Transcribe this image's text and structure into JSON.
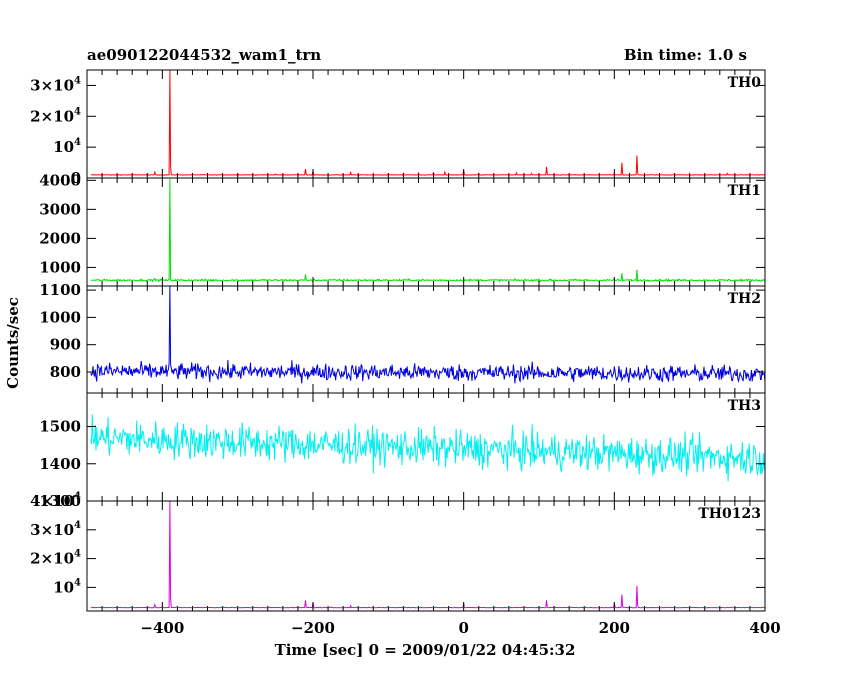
{
  "chart_data": {
    "type": "line",
    "title": "ae090122044532_wam1_trn",
    "bin_time": "Bin time: 1.0 s",
    "xlabel": "Time [sec] 0 = 2009/01/22 04:45:32",
    "ylabel": "Counts/sec",
    "xlim": [
      -500,
      400
    ],
    "x_ticks": [
      -400,
      -200,
      0,
      200,
      400
    ],
    "x_tick_labels": [
      "−400",
      "−200",
      "0",
      "200",
      "400"
    ],
    "grid": false,
    "panels": [
      {
        "name": "TH0",
        "color": "#ff0000",
        "ylim": [
          0,
          35000
        ],
        "y_ticks": [
          {
            "value": 0,
            "base": "0",
            "exp": ""
          },
          {
            "value": 10000,
            "base": "10",
            "exp": "4"
          },
          {
            "value": 20000,
            "base": "2×10",
            "exp": "4"
          },
          {
            "value": 30000,
            "base": "3×10",
            "exp": "4"
          }
        ],
        "baseline": 1000,
        "noise": 50,
        "spike_scale": 1,
        "spikes": [
          [
            -390,
            35000
          ],
          [
            -410,
            1900
          ],
          [
            -300,
            1400
          ],
          [
            -250,
            1300
          ],
          [
            -210,
            2900
          ],
          [
            -200,
            2300
          ],
          [
            -150,
            1800
          ],
          [
            -100,
            1400
          ],
          [
            -80,
            1500
          ],
          [
            -60,
            1600
          ],
          [
            -40,
            1700
          ],
          [
            -25,
            1900
          ],
          [
            0,
            2400
          ],
          [
            20,
            1500
          ],
          [
            70,
            1700
          ],
          [
            90,
            1500
          ],
          [
            110,
            3600
          ],
          [
            200,
            1600
          ],
          [
            210,
            5000
          ],
          [
            230,
            7300
          ],
          [
            350,
            1500
          ]
        ]
      },
      {
        "name": "TH1",
        "color": "#00e000",
        "ylim": [
          360,
          4080
        ],
        "y_ticks": [
          {
            "value": 1000,
            "base": "1000",
            "exp": ""
          },
          {
            "value": 2000,
            "base": "2000",
            "exp": ""
          },
          {
            "value": 3000,
            "base": "3000",
            "exp": ""
          },
          {
            "value": 4000,
            "base": "4000",
            "exp": ""
          }
        ],
        "baseline": 560,
        "noise": 25,
        "spike_scale": 0.105,
        "spikes": [
          [
            -390,
            4050
          ],
          [
            -410,
            620
          ],
          [
            -210,
            760
          ],
          [
            200,
            620
          ],
          [
            210,
            800
          ],
          [
            230,
            920
          ]
        ]
      },
      {
        "name": "TH2",
        "color": "#0000e0",
        "ylim": [
          723,
          1115
        ],
        "y_ticks": [
          {
            "value": 800,
            "base": "800",
            "exp": ""
          },
          {
            "value": 900,
            "base": "900",
            "exp": ""
          },
          {
            "value": 1000,
            "base": "1000",
            "exp": ""
          },
          {
            "value": 1100,
            "base": "1100",
            "exp": ""
          }
        ],
        "baseline": 803,
        "noise": 24,
        "trend": -10,
        "spike_scale": 0,
        "spikes": [
          [
            -390,
            1115
          ]
        ]
      },
      {
        "name": "TH3",
        "color": "#00f0f0",
        "ylim": [
          1300,
          1590
        ],
        "y_ticks": [
          {
            "value": 1300,
            "base": "1300",
            "exp": ""
          },
          {
            "value": 1400,
            "base": "1400",
            "exp": ""
          },
          {
            "value": 1500,
            "base": "1500",
            "exp": ""
          }
        ],
        "baseline": 1470,
        "noise": 38,
        "trend": -55,
        "spike_scale": 0,
        "spikes": []
      },
      {
        "name": "TH0123",
        "color": "#e000e0",
        "ylim": [
          1800,
          40000
        ],
        "y_ticks": [
          {
            "value": 10000,
            "base": "10",
            "exp": "4"
          },
          {
            "value": 20000,
            "base": "2×10",
            "exp": "4"
          },
          {
            "value": 30000,
            "base": "3×10",
            "exp": "4"
          },
          {
            "value": 40000,
            "base": "4×10",
            "exp": "4"
          }
        ],
        "baseline": 3000,
        "noise": 70,
        "spike_scale": 1,
        "spikes": [
          [
            -390,
            40000
          ],
          [
            -410,
            4000
          ],
          [
            -210,
            5500
          ],
          [
            -200,
            4800
          ],
          [
            -150,
            3600
          ],
          [
            0,
            4500
          ],
          [
            110,
            5500
          ],
          [
            200,
            4500
          ],
          [
            210,
            7500
          ],
          [
            230,
            10500
          ]
        ]
      }
    ]
  }
}
